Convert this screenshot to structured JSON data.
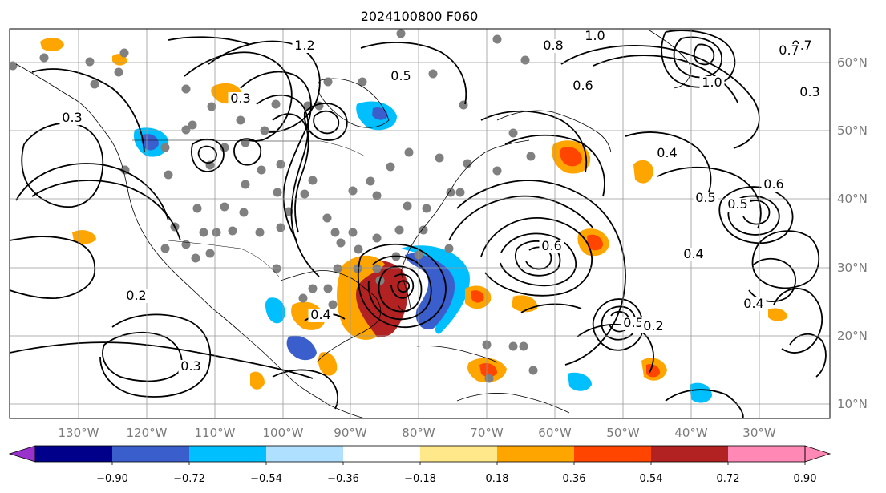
{
  "title": "2024100800 F060",
  "latitude_labels": [
    "60°N",
    "50°N",
    "40°N",
    "30°N",
    "20°N",
    "10°N"
  ],
  "longitude_labels": [
    "130°W",
    "120°W",
    "110°W",
    "100°W",
    "90°W",
    "80°W",
    "70°W",
    "60°W",
    "50°W",
    "40°W",
    "30°W"
  ],
  "colorbar": {
    "ticks": [
      "−0.90",
      "−0.72",
      "−0.54",
      "−0.36",
      "−0.18",
      "0.18",
      "0.36",
      "0.54",
      "0.72",
      "0.90"
    ],
    "colors": [
      "#9932cc",
      "#00008b",
      "#3a5fcd",
      "#00bfff",
      "#b0e0ff",
      "#ffffff",
      "#ffe88a",
      "#ffa500",
      "#ff4500",
      "#b22222",
      "#ff88b4"
    ]
  },
  "contour_labels": [
    "1.2",
    "1.0",
    "0.8",
    "0.7",
    "0.6",
    "0.5",
    "0.4",
    "0.3",
    "0.2",
    "1.0",
    "0.7",
    "0.6",
    "0.5",
    "0.4",
    "0.3",
    "0.3",
    "0.4",
    "0.5",
    "0.6",
    "0.4",
    "0.5",
    "0.2",
    "0.3",
    "0.4"
  ],
  "colors": {
    "contour": "#000000",
    "grid": "#999999",
    "marker": "#808080",
    "coast": "#000000"
  }
}
